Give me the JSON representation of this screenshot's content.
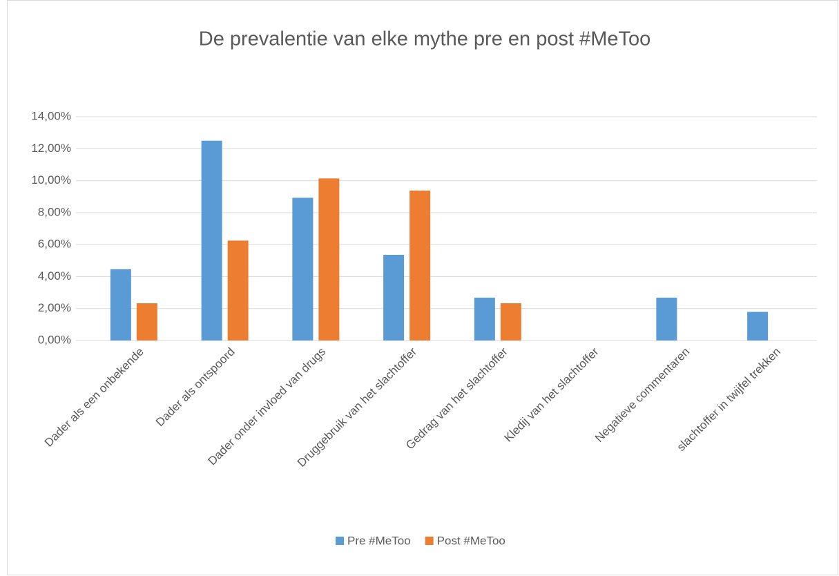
{
  "chart_data": {
    "type": "bar",
    "title": "De prevalentie van elke mythe pre en post #MeToo",
    "categories": [
      "Dader als een onbekende",
      "Dader als ontspoord",
      "Dader onder invloed van drugs",
      "Druggebruik van het slachtoffer",
      "Gedrag van het slachtoffer",
      "Kledij van het slachtoffer",
      "Negatieve commentaren",
      "slachtoffer in twijfel trekken"
    ],
    "series": [
      {
        "name": "Pre #MeToo",
        "color": "#5b9bd5",
        "values": [
          4.46,
          12.5,
          8.93,
          5.36,
          2.68,
          0,
          2.68,
          1.79
        ]
      },
      {
        "name": "Post #MeToo",
        "color": "#ed7d31",
        "values": [
          2.33,
          6.25,
          10.14,
          9.38,
          2.33,
          0,
          0,
          0
        ]
      }
    ],
    "ylim": [
      0,
      14
    ],
    "yticks": [
      {
        "value": 0,
        "label": "0,00%"
      },
      {
        "value": 2,
        "label": "2,00%"
      },
      {
        "value": 4,
        "label": "4,00%"
      },
      {
        "value": 6,
        "label": "6,00%"
      },
      {
        "value": 8,
        "label": "8,00%"
      },
      {
        "value": 10,
        "label": "10,00%"
      },
      {
        "value": 12,
        "label": "12,00%"
      },
      {
        "value": 14,
        "label": "14,00%"
      }
    ],
    "grid": true,
    "legend": "bottom"
  }
}
